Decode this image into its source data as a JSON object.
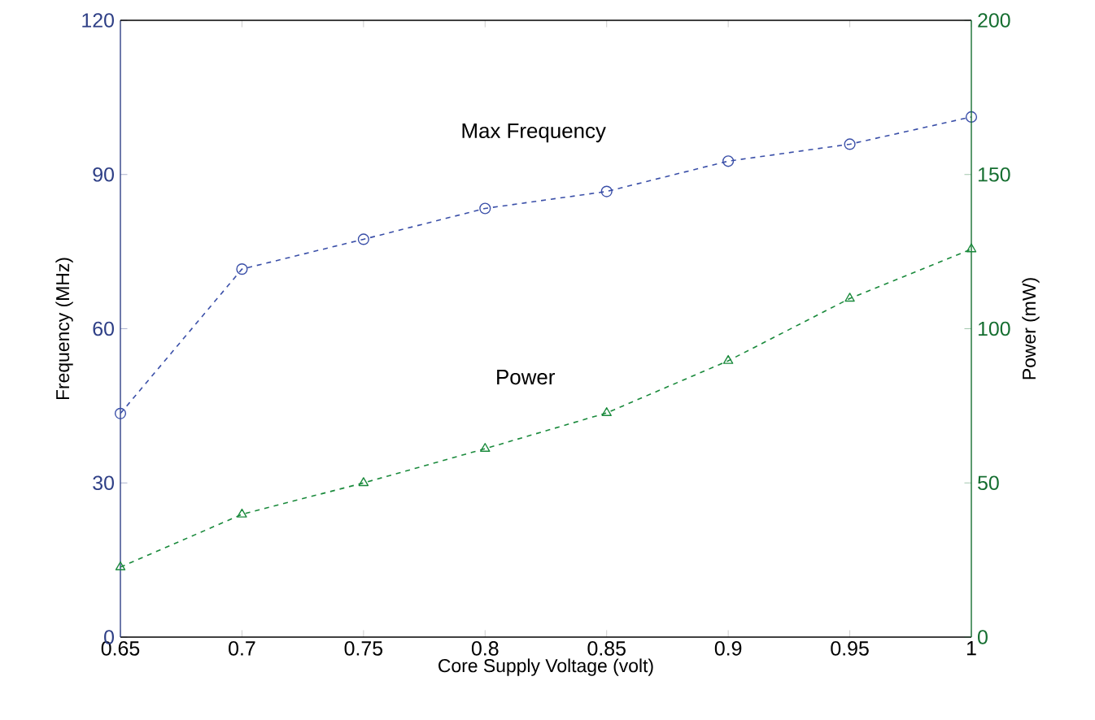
{
  "chart_data": {
    "type": "line",
    "xlabel": "Core Supply Voltage (volt)",
    "ylabel": "Frequency (MHz)",
    "y2label": "Power (mW)",
    "x": [
      0.65,
      0.7,
      0.75,
      0.8,
      0.85,
      0.9,
      0.95,
      1
    ],
    "xlim": [
      0.65,
      1
    ],
    "xticks": [
      0.65,
      0.7,
      0.75,
      0.8,
      0.85,
      0.9,
      0.95,
      1
    ],
    "ylim": [
      0,
      120
    ],
    "yticks": [
      0,
      30,
      60,
      90,
      120
    ],
    "y2lim": [
      0,
      200
    ],
    "y2ticks": [
      0,
      50,
      100,
      150,
      200
    ],
    "grid": false,
    "line_style": "dashed",
    "series": [
      {
        "name": "Max Frequency",
        "color": "#3a4fa8",
        "marker": "circle",
        "values": [
          43.5,
          71.6,
          77.4,
          83.4,
          86.7,
          92.6,
          95.9,
          101.2
        ]
      },
      {
        "name": "Power",
        "color": "#1a8a3c",
        "marker": "triangle",
        "axis": "y2",
        "values": [
          22.7,
          39.8,
          50.0,
          61.1,
          72.7,
          89.6,
          109.8,
          125.8
        ]
      }
    ]
  }
}
